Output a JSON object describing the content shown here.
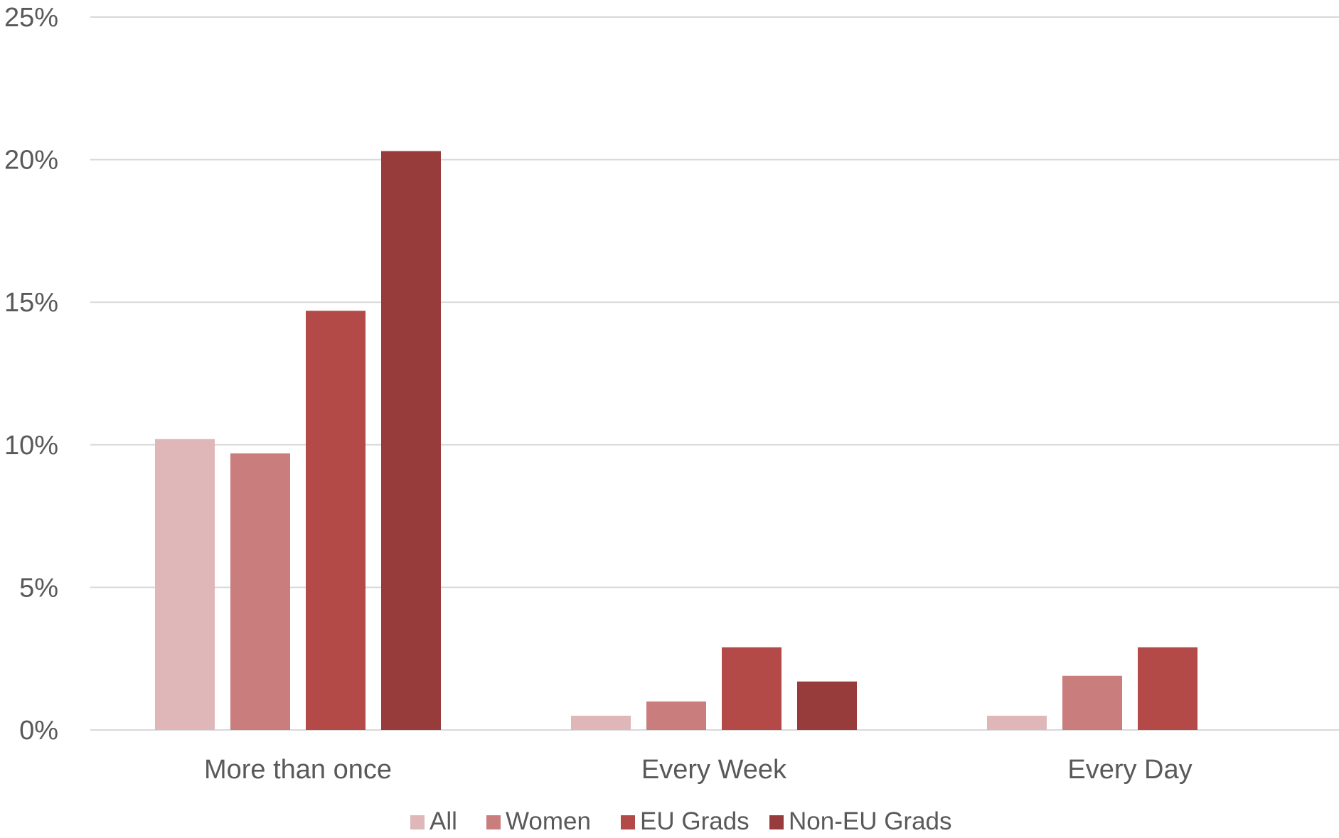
{
  "chart_data": {
    "type": "bar",
    "title": "",
    "xlabel": "",
    "ylabel": "",
    "categories": [
      "More than once",
      "Every Week",
      "Every Day"
    ],
    "series": [
      {
        "name": "All",
        "color": "#DFB7B8",
        "values": [
          10.2,
          0.5,
          0.5
        ]
      },
      {
        "name": "Women",
        "color": "#C97D7C",
        "values": [
          9.7,
          1.0,
          1.9
        ]
      },
      {
        "name": "EU Grads",
        "color": "#B34A47",
        "values": [
          14.7,
          2.9,
          2.9
        ]
      },
      {
        "name": "Non-EU Grads",
        "color": "#983C3B",
        "values": [
          20.3,
          1.7,
          null
        ]
      }
    ],
    "ylim": [
      0,
      25
    ],
    "yticks": [
      0,
      5,
      10,
      15,
      20,
      25
    ],
    "ytick_labels": [
      "0%",
      "5%",
      "10%",
      "15%",
      "20%",
      "25%"
    ],
    "grid": true,
    "legend_position": "bottom-center"
  }
}
